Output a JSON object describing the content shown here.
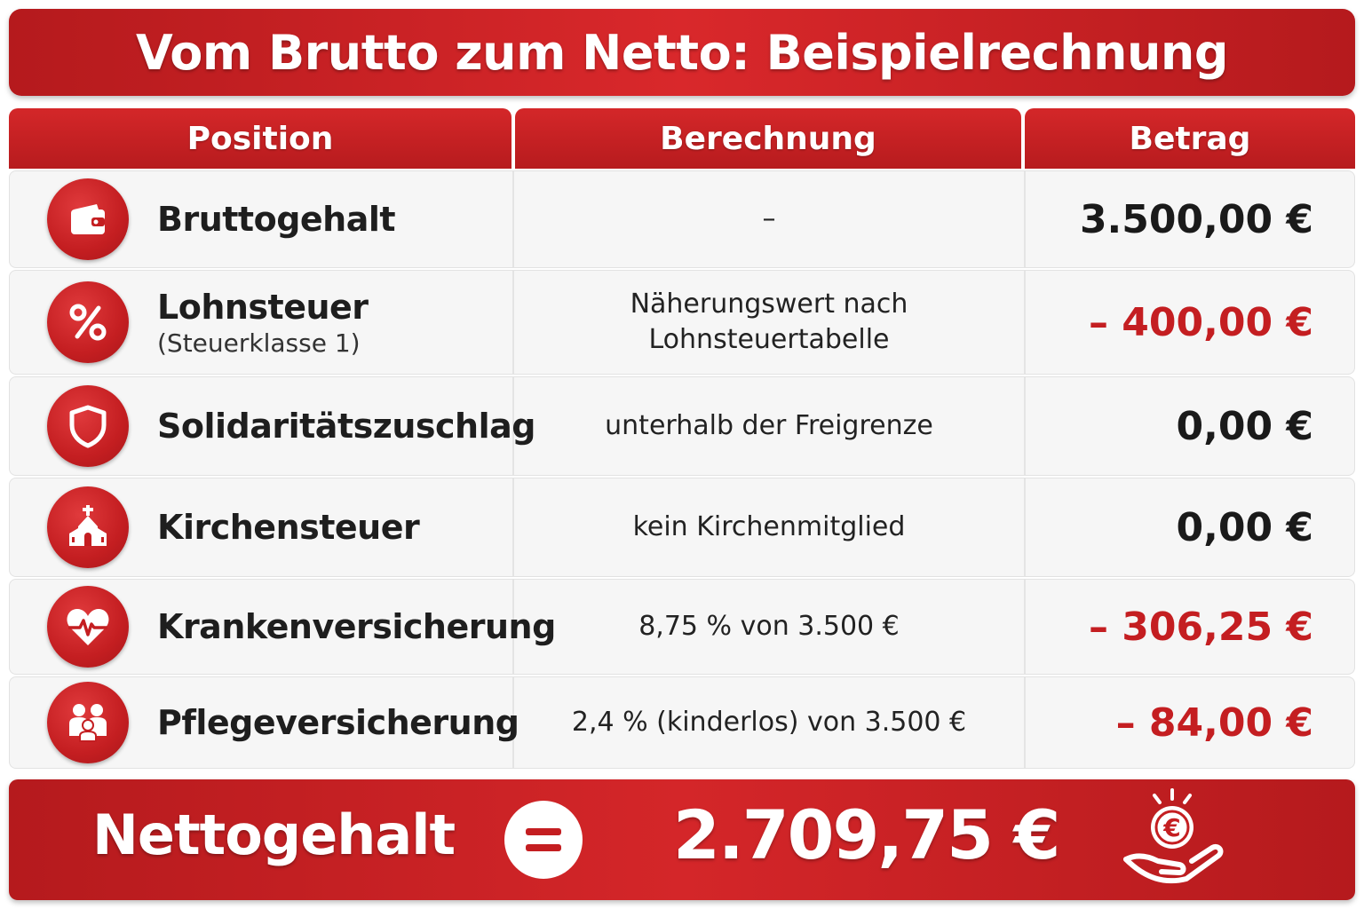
{
  "title": "Vom Brutto zum Netto: Beispielrechnung",
  "accent_color": "#c41e21",
  "columns": [
    "Position",
    "Berechnung",
    "Betrag"
  ],
  "rows": [
    {
      "icon": "wallet-icon",
      "label": "Bruttogehalt",
      "sub": "",
      "calc": "–",
      "amount": "3.500,00 €",
      "negative": false
    },
    {
      "icon": "percent-icon",
      "label": "Lohnsteuer",
      "sub": "(Steuerklasse 1)",
      "calc": "Näherungswert nach Lohnsteuertabelle",
      "amount": "– 400,00 €",
      "negative": true
    },
    {
      "icon": "shield-icon",
      "label": "Solidaritätszuschlag",
      "sub": "",
      "calc": "unterhalb der Freigrenze",
      "amount": "0,00 €",
      "negative": false
    },
    {
      "icon": "church-icon",
      "label": "Kirchensteuer",
      "sub": "",
      "calc": "kein Kirchenmitglied",
      "amount": "0,00 €",
      "negative": false
    },
    {
      "icon": "heart-pulse-icon",
      "label": "Krankenversicherung",
      "sub": "",
      "calc": "8,75 % von 3.500 €",
      "amount": "– 306,25 €",
      "negative": true
    },
    {
      "icon": "family-icon",
      "label": "Pflegeversicherung",
      "sub": "",
      "calc": "2,4 % (kinderlos) von 3.500 €",
      "amount": "– 84,00 €",
      "negative": true
    }
  ],
  "net": {
    "label": "Nettogehalt",
    "value": "2.709,75 €",
    "equals_icon": "equals-icon",
    "result_icon": "euro-coin-hand-icon"
  }
}
